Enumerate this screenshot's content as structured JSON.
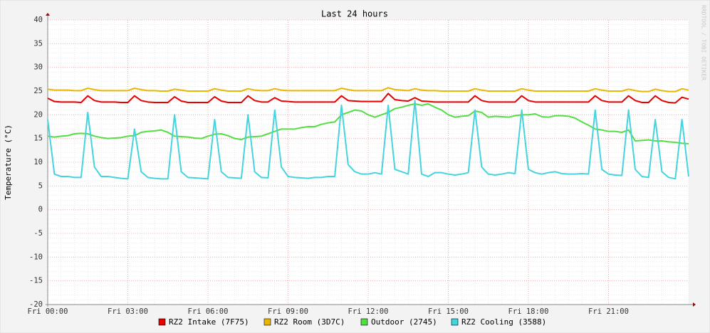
{
  "chart_data": {
    "type": "line",
    "title": "Last 24 hours",
    "y_label": "Temperature (°C)",
    "watermark": "RRDTOOL / TOBI OETIKER",
    "x": [
      0,
      0.25,
      0.5,
      0.75,
      1,
      1.25,
      1.5,
      1.75,
      2,
      2.25,
      2.5,
      2.75,
      3,
      3.25,
      3.5,
      3.75,
      4,
      4.25,
      4.5,
      4.75,
      5,
      5.25,
      5.5,
      5.75,
      6,
      6.25,
      6.5,
      6.75,
      7,
      7.25,
      7.5,
      7.75,
      8,
      8.25,
      8.5,
      8.75,
      9,
      9.25,
      9.5,
      9.75,
      10,
      10.25,
      10.5,
      10.75,
      11,
      11.25,
      11.5,
      11.75,
      12,
      12.25,
      12.5,
      12.75,
      13,
      13.25,
      13.5,
      13.75,
      14,
      14.25,
      14.5,
      14.75,
      15,
      15.25,
      15.5,
      15.75,
      16,
      16.25,
      16.5,
      16.75,
      17,
      17.25,
      17.5,
      17.75,
      18,
      18.25,
      18.5,
      18.75,
      19,
      19.25,
      19.5,
      19.75,
      20,
      20.25,
      20.5,
      20.75,
      21,
      21.25,
      21.5,
      21.75,
      22,
      22.25,
      22.5,
      22.75,
      23,
      23.25,
      23.5,
      23.75,
      24
    ],
    "xlim": [
      0,
      24
    ],
    "xticks": [
      {
        "value": 0,
        "label": "Fri 00:00"
      },
      {
        "value": 3,
        "label": "Fri 03:00"
      },
      {
        "value": 6,
        "label": "Fri 06:00"
      },
      {
        "value": 9,
        "label": "Fri 09:00"
      },
      {
        "value": 12,
        "label": "Fri 12:00"
      },
      {
        "value": 15,
        "label": "Fri 15:00"
      },
      {
        "value": 18,
        "label": "Fri 18:00"
      },
      {
        "value": 21,
        "label": "Fri 21:00"
      }
    ],
    "ylim": [
      -20,
      40
    ],
    "yticks": [
      -20,
      -15,
      -10,
      -5,
      0,
      5,
      10,
      15,
      20,
      25,
      30,
      35,
      40
    ],
    "grid": true,
    "series": [
      {
        "name": "RZ2 Intake (7F75)",
        "color": "#e80000",
        "values": [
          23.5,
          22.8,
          22.7,
          22.7,
          22.7,
          22.6,
          24,
          23,
          22.7,
          22.7,
          22.7,
          22.6,
          22.6,
          24,
          23,
          22.7,
          22.6,
          22.6,
          22.6,
          23.8,
          22.9,
          22.6,
          22.6,
          22.6,
          22.6,
          23.8,
          22.9,
          22.6,
          22.6,
          22.6,
          24,
          23,
          22.7,
          22.7,
          23.6,
          22.9,
          22.8,
          22.7,
          22.7,
          22.7,
          22.7,
          22.7,
          22.7,
          22.7,
          24,
          23,
          22.9,
          22.8,
          22.8,
          22.8,
          22.8,
          24.5,
          23.2,
          23,
          22.9,
          23.6,
          22.9,
          22.8,
          22.7,
          22.7,
          22.7,
          22.7,
          22.7,
          22.7,
          24,
          23,
          22.7,
          22.7,
          22.7,
          22.7,
          22.7,
          24,
          23,
          22.7,
          22.7,
          22.7,
          22.7,
          22.7,
          22.7,
          22.7,
          22.7,
          22.7,
          24,
          23,
          22.7,
          22.7,
          22.7,
          24,
          23,
          22.6,
          22.6,
          24,
          23,
          22.6,
          22.5,
          23.7,
          23.3
        ]
      },
      {
        "name": "RZ2 Room (3D7C)",
        "color": "#e8b800",
        "values": [
          25.4,
          25.2,
          25.2,
          25.2,
          25.1,
          25.1,
          25.6,
          25.3,
          25.1,
          25.1,
          25.1,
          25.1,
          25.1,
          25.6,
          25.3,
          25.1,
          25.1,
          25.0,
          25.0,
          25.4,
          25.2,
          25.0,
          25.0,
          25.0,
          25.0,
          25.5,
          25.2,
          25.0,
          25.0,
          25.0,
          25.5,
          25.2,
          25.1,
          25.1,
          25.5,
          25.2,
          25.1,
          25.1,
          25.1,
          25.1,
          25.1,
          25.1,
          25.1,
          25.1,
          25.6,
          25.3,
          25.1,
          25.1,
          25.1,
          25.1,
          25.1,
          25.7,
          25.3,
          25.2,
          25.1,
          25.5,
          25.2,
          25.1,
          25.1,
          25.0,
          25.0,
          25.0,
          25.0,
          25.0,
          25.5,
          25.2,
          25.0,
          25.0,
          25.0,
          25.0,
          25.0,
          25.5,
          25.2,
          25.0,
          25.0,
          25.0,
          25.0,
          25.0,
          25.0,
          25.0,
          25.0,
          25.0,
          25.5,
          25.2,
          25.0,
          25.0,
          25.0,
          25.4,
          25.1,
          24.9,
          24.9,
          25.4,
          25.1,
          24.9,
          24.9,
          25.5,
          25.2
        ]
      },
      {
        "name": "Outdoor (2745)",
        "color": "#55dd44",
        "values": [
          15.5,
          15.3,
          15.5,
          15.6,
          16,
          16.1,
          16,
          15.5,
          15.2,
          15,
          15.1,
          15.2,
          15.5,
          15.6,
          16.3,
          16.5,
          16.6,
          16.8,
          16.3,
          15.5,
          15.4,
          15.3,
          15.1,
          15,
          15.5,
          15.9,
          16,
          15.6,
          15,
          14.8,
          15.3,
          15.4,
          15.5,
          16,
          16.5,
          17,
          17,
          17,
          17.3,
          17.5,
          17.5,
          18,
          18.3,
          18.5,
          20,
          20.5,
          21,
          20.8,
          20,
          19.5,
          20,
          20.5,
          21.3,
          21.6,
          22,
          22.3,
          22,
          22.3,
          21.6,
          21,
          20,
          19.5,
          19.7,
          19.8,
          20.8,
          20.5,
          19.5,
          19.7,
          19.6,
          19.5,
          19.8,
          20,
          20,
          20.2,
          19.6,
          19.5,
          19.8,
          19.8,
          19.7,
          19.3,
          18.5,
          17.8,
          17,
          16.8,
          16.5,
          16.5,
          16.3,
          16.8,
          14.5,
          14.6,
          14.7,
          14.5,
          14.5,
          14.3,
          14.2,
          14,
          13.9
        ]
      },
      {
        "name": "RZ2 Cooling (3588)",
        "color": "#44d4e0",
        "values": [
          19,
          7.5,
          7,
          7,
          6.8,
          6.8,
          20.5,
          9,
          7,
          7,
          6.8,
          6.6,
          6.5,
          17,
          8,
          6.8,
          6.6,
          6.5,
          6.5,
          20,
          8,
          6.8,
          6.7,
          6.6,
          6.5,
          19,
          8,
          6.8,
          6.7,
          6.6,
          20,
          8,
          6.8,
          6.7,
          21,
          9,
          7,
          6.8,
          6.7,
          6.6,
          6.8,
          6.8,
          7,
          7,
          22,
          9.5,
          8,
          7.5,
          7.5,
          7.8,
          7.5,
          22,
          8.5,
          8,
          7.5,
          23,
          7.5,
          7,
          7.8,
          7.8,
          7.5,
          7.3,
          7.5,
          7.8,
          21,
          9,
          7.5,
          7.3,
          7.5,
          7.8,
          7.6,
          21,
          8.5,
          7.8,
          7.5,
          7.8,
          8,
          7.6,
          7.5,
          7.5,
          7.6,
          7.5,
          21,
          8.5,
          7.5,
          7.3,
          7.2,
          21,
          8.5,
          7,
          6.8,
          19,
          8,
          6.8,
          6.5,
          19,
          7
        ]
      }
    ]
  }
}
